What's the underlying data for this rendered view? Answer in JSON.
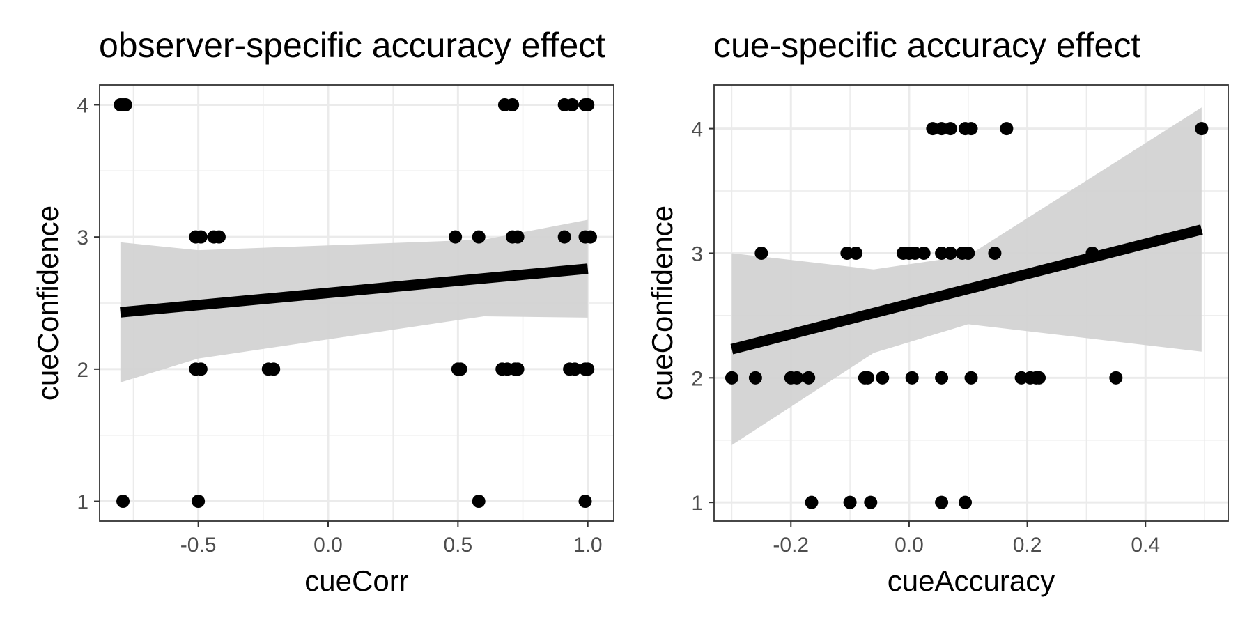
{
  "chart_data": [
    {
      "type": "scatter",
      "title": "observer-specific accuracy effect",
      "xlabel": "cueCorr",
      "ylabel": "cueConfidence",
      "xlim": [
        -0.88,
        1.1
      ],
      "ylim": [
        0.85,
        4.15
      ],
      "xticks": [
        -0.5,
        0.0,
        0.5,
        1.0
      ],
      "xtick_labels": [
        "-0.5",
        "0.0",
        "0.5",
        "1.0"
      ],
      "yticks": [
        1,
        2,
        3,
        4
      ],
      "ytick_labels": [
        "1",
        "2",
        "3",
        "4"
      ],
      "grid": true,
      "legend": "none",
      "colors": {
        "points": "#000000",
        "line": "#000000",
        "ribbon": "#d3d3d3"
      },
      "points": [
        {
          "x": -0.8,
          "y": 4
        },
        {
          "x": -0.79,
          "y": 4
        },
        {
          "x": -0.78,
          "y": 4
        },
        {
          "x": 0.68,
          "y": 4
        },
        {
          "x": 0.71,
          "y": 4
        },
        {
          "x": 0.91,
          "y": 4
        },
        {
          "x": 0.94,
          "y": 4
        },
        {
          "x": 0.99,
          "y": 4
        },
        {
          "x": 1.0,
          "y": 4
        },
        {
          "x": -0.51,
          "y": 3
        },
        {
          "x": -0.49,
          "y": 3
        },
        {
          "x": -0.44,
          "y": 3
        },
        {
          "x": -0.42,
          "y": 3
        },
        {
          "x": 0.49,
          "y": 3
        },
        {
          "x": 0.58,
          "y": 3
        },
        {
          "x": 0.71,
          "y": 3
        },
        {
          "x": 0.73,
          "y": 3
        },
        {
          "x": 0.91,
          "y": 3
        },
        {
          "x": 0.99,
          "y": 3
        },
        {
          "x": 1.01,
          "y": 3
        },
        {
          "x": -0.51,
          "y": 2
        },
        {
          "x": -0.49,
          "y": 2
        },
        {
          "x": -0.23,
          "y": 2
        },
        {
          "x": -0.21,
          "y": 2
        },
        {
          "x": 0.5,
          "y": 2
        },
        {
          "x": 0.51,
          "y": 2
        },
        {
          "x": 0.67,
          "y": 2
        },
        {
          "x": 0.69,
          "y": 2
        },
        {
          "x": 0.72,
          "y": 2
        },
        {
          "x": 0.73,
          "y": 2
        },
        {
          "x": 0.93,
          "y": 2
        },
        {
          "x": 0.95,
          "y": 2
        },
        {
          "x": 0.99,
          "y": 2
        },
        {
          "x": 1.0,
          "y": 2
        },
        {
          "x": -0.79,
          "y": 1
        },
        {
          "x": -0.5,
          "y": 1
        },
        {
          "x": 0.58,
          "y": 1
        },
        {
          "x": 0.99,
          "y": 1
        }
      ],
      "fit": {
        "x": [
          -0.8,
          1.0
        ],
        "y": [
          2.43,
          2.76
        ]
      },
      "ribbon": {
        "x": [
          -0.8,
          -0.5,
          0.6,
          1.0
        ],
        "upper": [
          2.96,
          2.9,
          2.98,
          3.13
        ],
        "lower": [
          1.9,
          2.08,
          2.4,
          2.39
        ]
      }
    },
    {
      "type": "scatter",
      "title": "cue-specific accuracy effect",
      "xlabel": "cueAccuracy",
      "ylabel": "cueConfidence",
      "xlim": [
        -0.33,
        0.54
      ],
      "ylim": [
        0.85,
        4.35
      ],
      "xticks": [
        -0.2,
        0.0,
        0.2,
        0.4
      ],
      "xtick_labels": [
        "-0.2",
        "0.0",
        "0.2",
        "0.4"
      ],
      "yticks": [
        1,
        2,
        3,
        4
      ],
      "ytick_labels": [
        "1",
        "2",
        "3",
        "4"
      ],
      "grid": true,
      "legend": "none",
      "colors": {
        "points": "#000000",
        "line": "#000000",
        "ribbon": "#d3d3d3"
      },
      "points": [
        {
          "x": 0.04,
          "y": 4
        },
        {
          "x": 0.055,
          "y": 4
        },
        {
          "x": 0.07,
          "y": 4
        },
        {
          "x": 0.095,
          "y": 4
        },
        {
          "x": 0.105,
          "y": 4
        },
        {
          "x": 0.165,
          "y": 4
        },
        {
          "x": 0.495,
          "y": 4
        },
        {
          "x": -0.25,
          "y": 3
        },
        {
          "x": -0.105,
          "y": 3
        },
        {
          "x": -0.09,
          "y": 3
        },
        {
          "x": -0.01,
          "y": 3
        },
        {
          "x": 0.0,
          "y": 3
        },
        {
          "x": 0.01,
          "y": 3
        },
        {
          "x": 0.025,
          "y": 3
        },
        {
          "x": 0.055,
          "y": 3
        },
        {
          "x": 0.07,
          "y": 3
        },
        {
          "x": 0.09,
          "y": 3
        },
        {
          "x": 0.1,
          "y": 3
        },
        {
          "x": 0.145,
          "y": 3
        },
        {
          "x": 0.31,
          "y": 3
        },
        {
          "x": -0.3,
          "y": 2
        },
        {
          "x": -0.26,
          "y": 2
        },
        {
          "x": -0.2,
          "y": 2
        },
        {
          "x": -0.19,
          "y": 2
        },
        {
          "x": -0.17,
          "y": 2
        },
        {
          "x": -0.075,
          "y": 2
        },
        {
          "x": -0.07,
          "y": 2
        },
        {
          "x": -0.045,
          "y": 2
        },
        {
          "x": 0.005,
          "y": 2
        },
        {
          "x": 0.055,
          "y": 2
        },
        {
          "x": 0.105,
          "y": 2
        },
        {
          "x": 0.19,
          "y": 2
        },
        {
          "x": 0.205,
          "y": 2
        },
        {
          "x": 0.215,
          "y": 2
        },
        {
          "x": 0.22,
          "y": 2
        },
        {
          "x": 0.35,
          "y": 2
        },
        {
          "x": -0.165,
          "y": 1
        },
        {
          "x": -0.1,
          "y": 1
        },
        {
          "x": -0.065,
          "y": 1
        },
        {
          "x": 0.055,
          "y": 1
        },
        {
          "x": 0.095,
          "y": 1
        }
      ],
      "fit": {
        "x": [
          -0.3,
          0.495
        ],
        "y": [
          2.23,
          3.19
        ]
      },
      "ribbon": {
        "x": [
          -0.3,
          -0.06,
          0.1,
          0.495
        ],
        "upper": [
          3.0,
          2.87,
          2.98,
          4.17
        ],
        "lower": [
          1.46,
          2.2,
          2.43,
          2.21
        ]
      }
    }
  ]
}
